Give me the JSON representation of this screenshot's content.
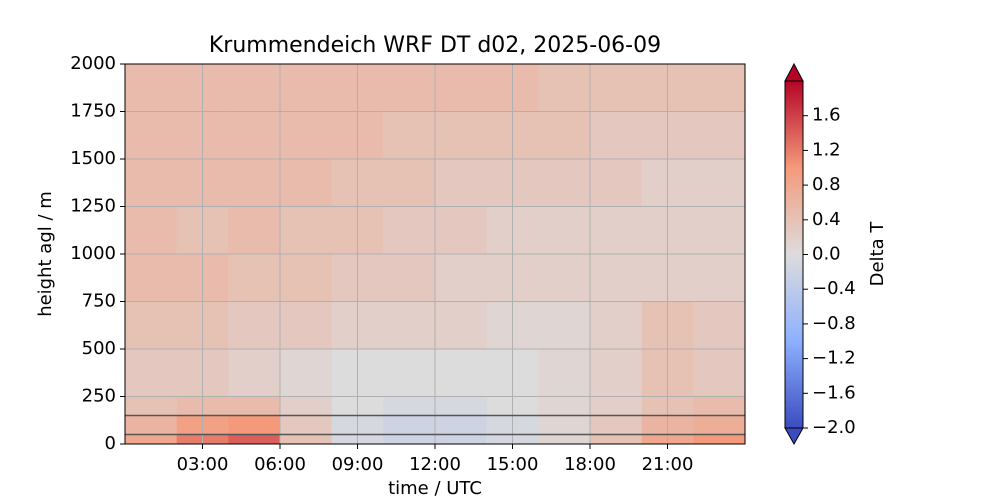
{
  "chart_data": {
    "type": "heatmap",
    "title": "Krummendeich WRF DT d02, 2025-06-09",
    "xlabel": "time / UTC",
    "ylabel": "height agl / m",
    "colorbar_label": "Delta T",
    "xlim": [
      0,
      24
    ],
    "ylim": [
      0,
      2000
    ],
    "xticks": [
      {
        "value": 3,
        "label": "03:00"
      },
      {
        "value": 6,
        "label": "06:00"
      },
      {
        "value": 9,
        "label": "09:00"
      },
      {
        "value": 12,
        "label": "12:00"
      },
      {
        "value": 15,
        "label": "15:00"
      },
      {
        "value": 18,
        "label": "18:00"
      },
      {
        "value": 21,
        "label": "21:00"
      }
    ],
    "yticks": [
      0,
      250,
      500,
      750,
      1000,
      1250,
      1500,
      1750,
      2000
    ],
    "grid": true,
    "xbins": [
      0,
      2,
      4,
      6,
      8,
      10,
      12,
      14,
      16,
      18,
      20,
      22,
      24
    ],
    "ybins": [
      0,
      50,
      150,
      250,
      500,
      750,
      1000,
      1250,
      1500,
      1750,
      2000
    ],
    "z": [
      [
        0.8,
        1.2,
        1.4,
        0.4,
        -0.1,
        -0.2,
        -0.2,
        -0.1,
        0.1,
        0.4,
        0.8,
        1.0
      ],
      [
        0.6,
        0.9,
        1.0,
        0.3,
        -0.1,
        -0.2,
        -0.2,
        -0.1,
        0.1,
        0.3,
        0.6,
        0.7
      ],
      [
        0.4,
        0.5,
        0.5,
        0.2,
        0.0,
        -0.1,
        -0.1,
        0.0,
        0.1,
        0.2,
        0.4,
        0.5
      ],
      [
        0.3,
        0.3,
        0.2,
        0.1,
        0.0,
        0.0,
        0.0,
        0.0,
        0.1,
        0.2,
        0.4,
        0.3
      ],
      [
        0.4,
        0.4,
        0.3,
        0.3,
        0.2,
        0.2,
        0.2,
        0.1,
        0.1,
        0.2,
        0.4,
        0.3
      ],
      [
        0.5,
        0.5,
        0.4,
        0.4,
        0.3,
        0.3,
        0.2,
        0.2,
        0.2,
        0.2,
        0.2,
        0.2
      ],
      [
        0.5,
        0.4,
        0.5,
        0.4,
        0.4,
        0.3,
        0.3,
        0.2,
        0.2,
        0.2,
        0.2,
        0.2
      ],
      [
        0.5,
        0.5,
        0.5,
        0.5,
        0.4,
        0.4,
        0.3,
        0.3,
        0.3,
        0.3,
        0.2,
        0.2
      ],
      [
        0.5,
        0.5,
        0.5,
        0.5,
        0.5,
        0.4,
        0.4,
        0.4,
        0.4,
        0.3,
        0.3,
        0.3
      ],
      [
        0.5,
        0.5,
        0.5,
        0.5,
        0.5,
        0.5,
        0.5,
        0.5,
        0.4,
        0.4,
        0.4,
        0.4
      ]
    ],
    "hlines": [
      150,
      50
    ],
    "hline_color": "#555555",
    "vlim": [
      -2,
      2
    ],
    "cticks": [
      {
        "value": -2,
        "label": "−2.0"
      },
      {
        "value": -1.6,
        "label": "−1.6"
      },
      {
        "value": -1.2,
        "label": "−1.2"
      },
      {
        "value": -0.8,
        "label": "−0.8"
      },
      {
        "value": -0.4,
        "label": "−0.4"
      },
      {
        "value": 0,
        "label": "0.0"
      },
      {
        "value": 0.4,
        "label": "0.4"
      },
      {
        "value": 0.8,
        "label": "0.8"
      },
      {
        "value": 1.2,
        "label": "1.2"
      },
      {
        "value": 1.6,
        "label": "1.6"
      }
    ]
  }
}
